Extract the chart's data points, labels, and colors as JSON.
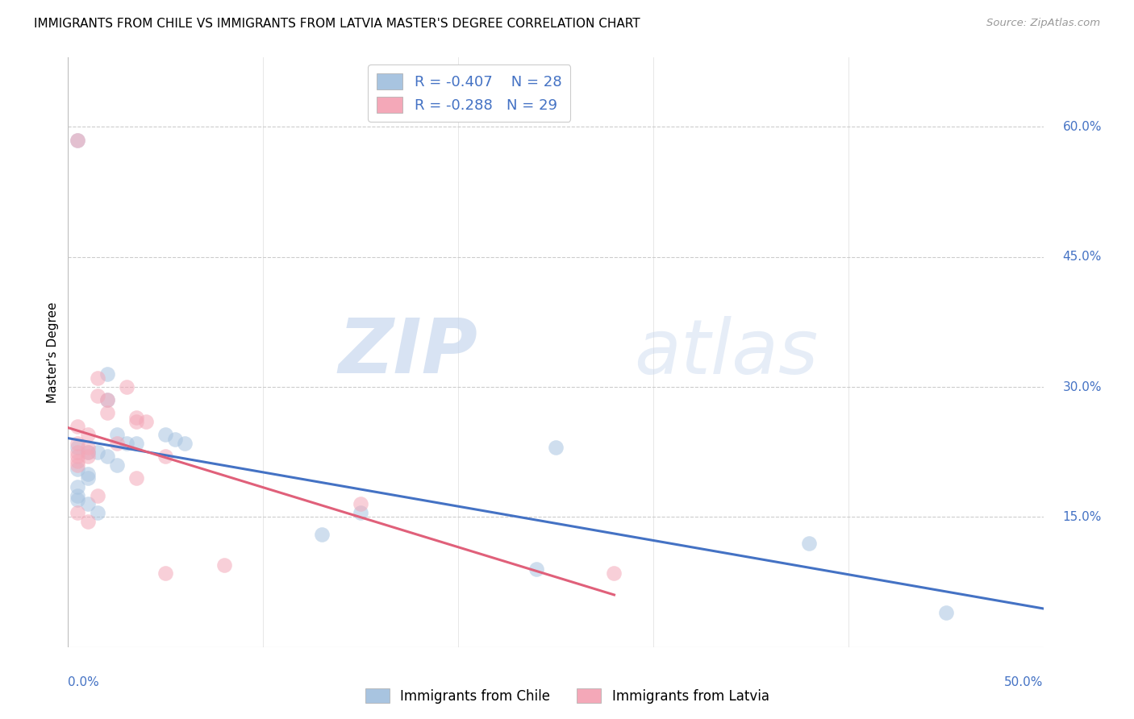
{
  "title": "IMMIGRANTS FROM CHILE VS IMMIGRANTS FROM LATVIA MASTER'S DEGREE CORRELATION CHART",
  "source": "Source: ZipAtlas.com",
  "ylabel": "Master's Degree",
  "right_yticks": [
    "60.0%",
    "45.0%",
    "30.0%",
    "15.0%"
  ],
  "right_ytick_vals": [
    0.6,
    0.45,
    0.3,
    0.15
  ],
  "xlim": [
    0.0,
    0.5
  ],
  "ylim": [
    0.0,
    0.68
  ],
  "chile_color": "#a8c4e0",
  "latvia_color": "#f4a8b8",
  "chile_line_color": "#4472c4",
  "latvia_line_color": "#e0607a",
  "chile_R": "-0.407",
  "chile_N": "28",
  "latvia_R": "-0.288",
  "latvia_N": "29",
  "legend_label_chile": "Immigrants from Chile",
  "legend_label_latvia": "Immigrants from Latvia",
  "chile_x": [
    0.005,
    0.02,
    0.02,
    0.025,
    0.03,
    0.035,
    0.005,
    0.01,
    0.015,
    0.02,
    0.025,
    0.005,
    0.01,
    0.01,
    0.005,
    0.005,
    0.005,
    0.01,
    0.015,
    0.05,
    0.055,
    0.06,
    0.13,
    0.15,
    0.24,
    0.25,
    0.38,
    0.45
  ],
  "chile_y": [
    0.585,
    0.315,
    0.285,
    0.245,
    0.235,
    0.235,
    0.23,
    0.225,
    0.225,
    0.22,
    0.21,
    0.205,
    0.2,
    0.195,
    0.185,
    0.175,
    0.17,
    0.165,
    0.155,
    0.245,
    0.24,
    0.235,
    0.13,
    0.155,
    0.09,
    0.23,
    0.12,
    0.04
  ],
  "latvia_x": [
    0.005,
    0.005,
    0.005,
    0.005,
    0.005,
    0.005,
    0.005,
    0.005,
    0.01,
    0.01,
    0.01,
    0.01,
    0.01,
    0.015,
    0.015,
    0.015,
    0.02,
    0.02,
    0.025,
    0.03,
    0.035,
    0.035,
    0.035,
    0.04,
    0.05,
    0.05,
    0.08,
    0.15,
    0.28
  ],
  "latvia_y": [
    0.585,
    0.255,
    0.235,
    0.225,
    0.22,
    0.215,
    0.21,
    0.155,
    0.245,
    0.23,
    0.225,
    0.22,
    0.145,
    0.31,
    0.29,
    0.175,
    0.285,
    0.27,
    0.235,
    0.3,
    0.265,
    0.26,
    0.195,
    0.26,
    0.22,
    0.085,
    0.095,
    0.165,
    0.085
  ],
  "watermark_zip": "ZIP",
  "watermark_atlas": "atlas",
  "dot_size": 180,
  "dot_alpha": 0.55,
  "line_width": 2.2
}
